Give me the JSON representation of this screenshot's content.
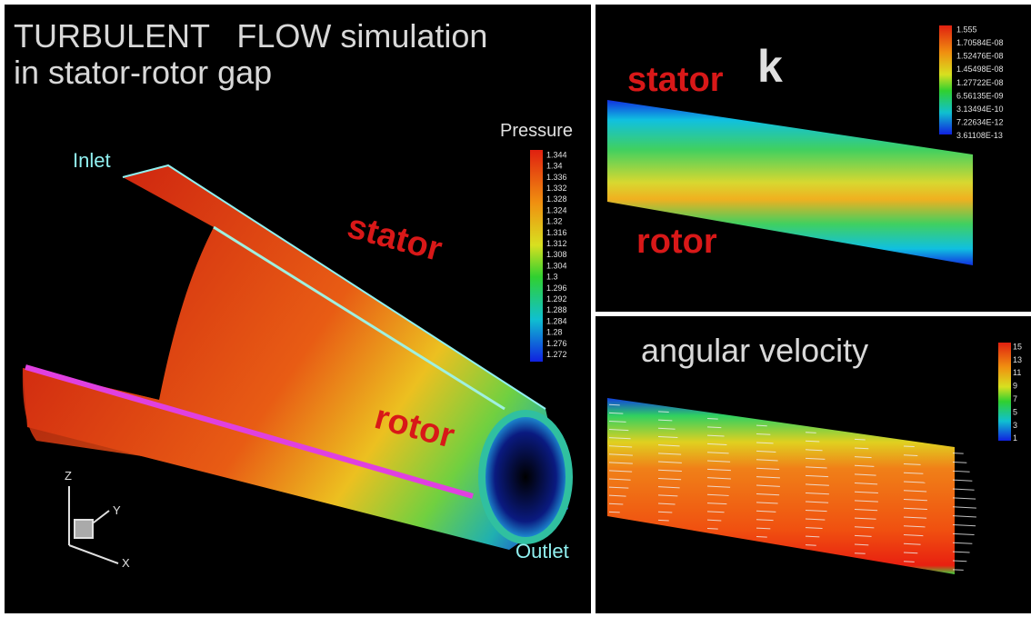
{
  "left_panel": {
    "title": [
      "TURBULENT   FLOW simulation",
      "in stator-rotor gap"
    ],
    "labels": {
      "inlet": "Inlet",
      "stator": "stator",
      "rotor": "rotor",
      "outlet": "Outlet"
    },
    "legend": {
      "title": "Pressure",
      "levels": [
        "1.344",
        "1.34",
        "1.336",
        "1.332",
        "1.328",
        "1.324",
        "1.32",
        "1.316",
        "1.312",
        "1.308",
        "1.304",
        "1.3",
        "1.296",
        "1.292",
        "1.288",
        "1.284",
        "1.28",
        "1.276",
        "1.272"
      ]
    },
    "axes": {
      "z": "Z",
      "y": "Y",
      "x": "X"
    }
  },
  "top_right_panel": {
    "title": "k",
    "labels": {
      "stator": "stator",
      "rotor": "rotor"
    },
    "legend": {
      "levels": [
        "1.555",
        "1.70584E-08",
        "1.52476E-08",
        "1.45498E-08",
        "1.27722E-08",
        "6.56135E-09",
        "3.13494E-10",
        "7.22634E-12",
        "3.61108E-13"
      ]
    }
  },
  "bottom_right_panel": {
    "title": "angular velocity",
    "legend": {
      "levels": [
        "15",
        "13",
        "11",
        "9",
        "7",
        "5",
        "3",
        "1"
      ]
    }
  }
}
